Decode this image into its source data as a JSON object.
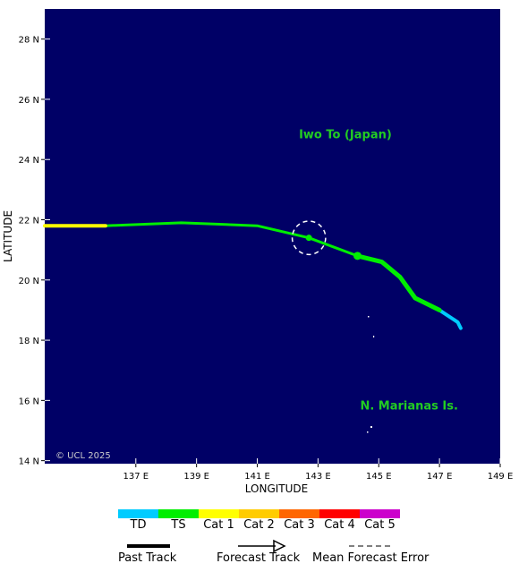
{
  "map": {
    "places": [
      {
        "name": "Iwo To (Japan)",
        "lon": 143.9,
        "lat": 24.7
      },
      {
        "name": "N. Marianas Is.",
        "lon": 146.0,
        "lat": 15.7
      }
    ],
    "copyright": "© UCL 2025",
    "colors": {
      "ocean": "#000066",
      "label": "#22cc22",
      "grid_tick": "#ffffff"
    }
  },
  "axes": {
    "xlabel": "LONGITUDE",
    "ylabel": "LATITUDE",
    "xlim": [
      134.0,
      149.0
    ],
    "ylim": [
      13.9,
      29.0
    ],
    "xticks": [
      {
        "value": 137,
        "label": "137 E"
      },
      {
        "value": 139,
        "label": "139 E"
      },
      {
        "value": 141,
        "label": "141 E"
      },
      {
        "value": 143,
        "label": "143 E"
      },
      {
        "value": 145,
        "label": "145 E"
      },
      {
        "value": 147,
        "label": "147 E"
      },
      {
        "value": 149,
        "label": "149 E"
      }
    ],
    "yticks": [
      {
        "value": 14,
        "label": "14 N"
      },
      {
        "value": 16,
        "label": "16 N"
      },
      {
        "value": 18,
        "label": "18 N"
      },
      {
        "value": 20,
        "label": "20 N"
      },
      {
        "value": 22,
        "label": "22 N"
      },
      {
        "value": 24,
        "label": "24 N"
      },
      {
        "value": 26,
        "label": "26 N"
      },
      {
        "value": 28,
        "label": "28 N"
      }
    ]
  },
  "track": {
    "segments": [
      {
        "category": "TD",
        "color": "#00ccff",
        "points": [
          [
            147.7,
            18.4
          ],
          [
            147.6,
            18.6
          ],
          [
            147.0,
            19.0
          ]
        ]
      },
      {
        "category": "TS",
        "color": "#00ee00",
        "points": [
          [
            147.0,
            19.0
          ],
          [
            146.2,
            19.4
          ],
          [
            145.7,
            20.1
          ],
          [
            145.1,
            20.6
          ],
          [
            144.3,
            20.8
          ],
          [
            142.7,
            21.4
          ],
          [
            141.0,
            21.8
          ],
          [
            138.5,
            21.9
          ],
          [
            136.0,
            21.8
          ]
        ]
      },
      {
        "category": "Cat 1",
        "color": "#ffff00",
        "points": [
          [
            136.0,
            21.8
          ],
          [
            134.0,
            21.8
          ]
        ]
      }
    ],
    "current_position": {
      "lon": 142.7,
      "lat": 21.4
    },
    "forecast_points": [
      {
        "lon": 144.3,
        "lat": 20.8
      }
    ],
    "error_circle": {
      "lon": 142.7,
      "lat": 21.4,
      "radius_deg": 0.55
    }
  },
  "legend": {
    "categories": [
      {
        "label": "TD",
        "color": "#00ccff"
      },
      {
        "label": "TS",
        "color": "#00ee00"
      },
      {
        "label": "Cat 1",
        "color": "#ffff00"
      },
      {
        "label": "Cat 2",
        "color": "#ffcc00"
      },
      {
        "label": "Cat 3",
        "color": "#ff6600"
      },
      {
        "label": "Cat 4",
        "color": "#ff0000"
      },
      {
        "label": "Cat 5",
        "color": "#cc00cc"
      }
    ],
    "past_track_label": "Past Track",
    "forecast_track_label": "Forecast Track",
    "mean_error_label": "Mean Forecast Error"
  }
}
